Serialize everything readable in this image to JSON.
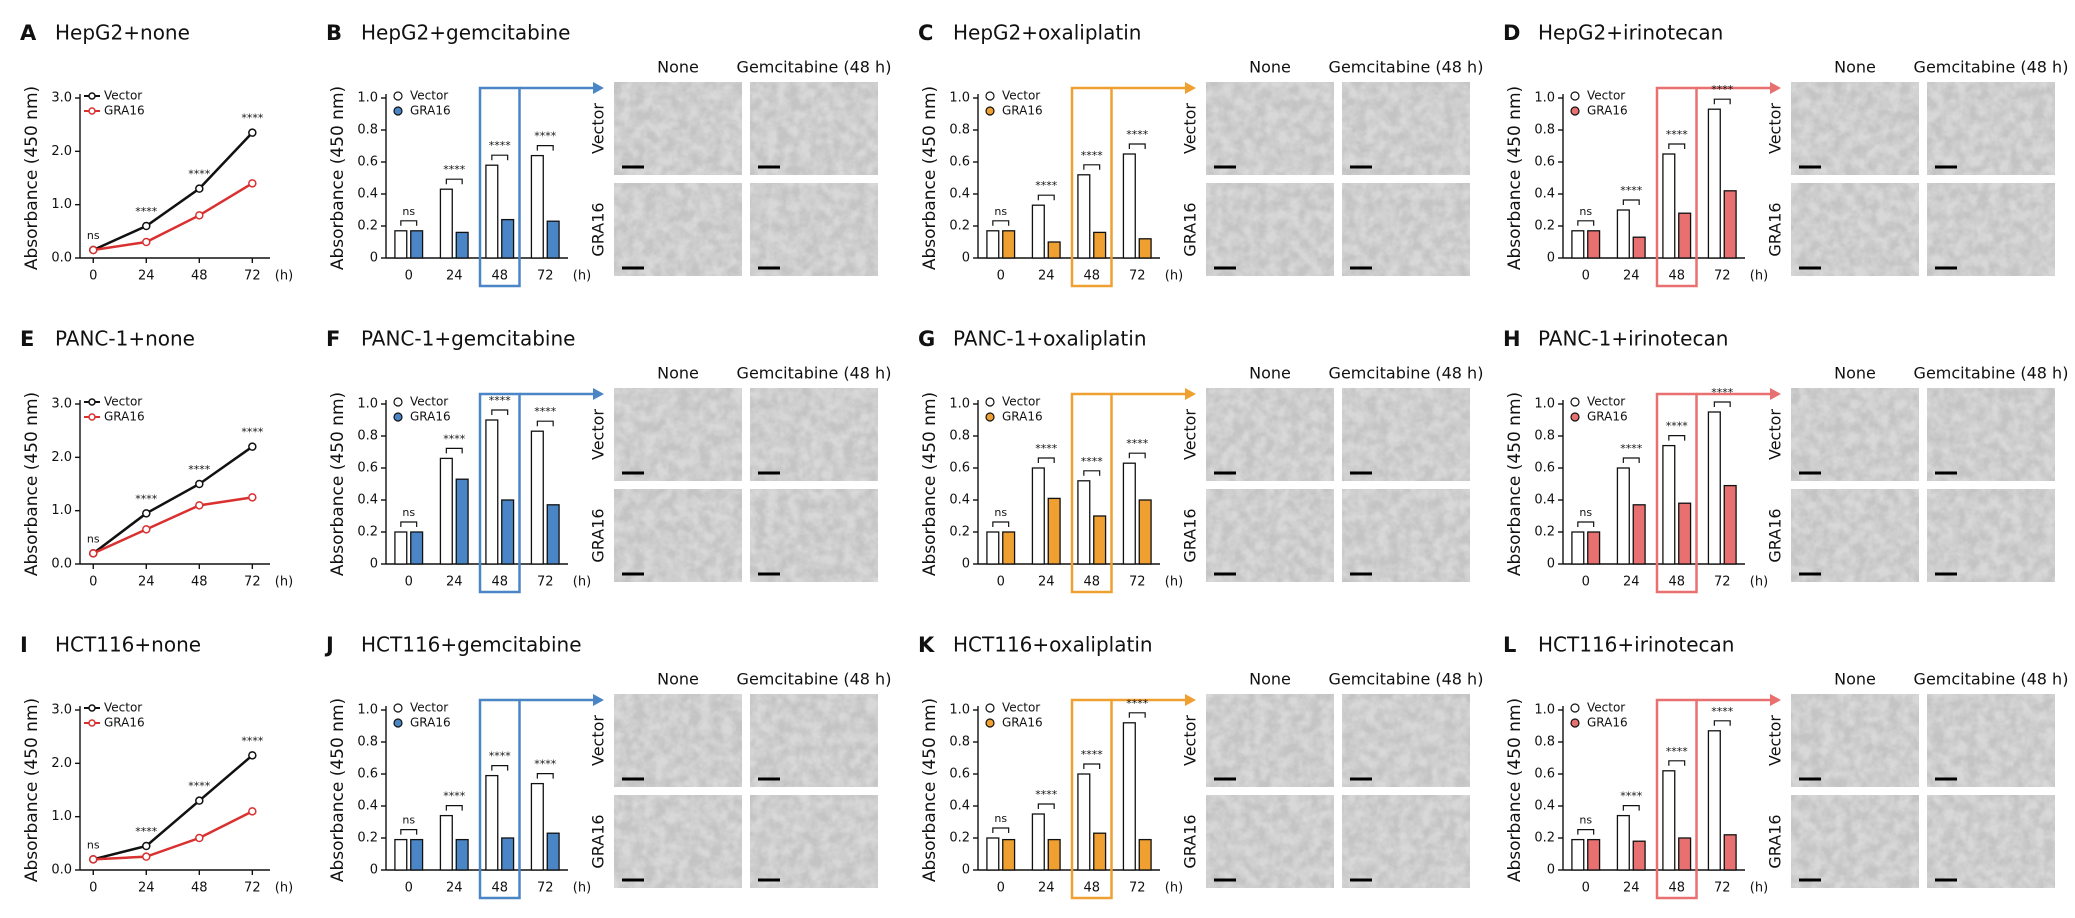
{
  "chart_data": [
    {
      "type": "line",
      "panel": "A",
      "title": "HepG2+none",
      "y_label": "Absorbance (450 nm)",
      "x_unit": "(h)",
      "x": [
        0,
        24,
        48,
        72
      ],
      "xlim": [
        -6,
        80
      ],
      "xticks": [
        0,
        24,
        48,
        72
      ],
      "ylim": [
        0,
        3
      ],
      "yticks": [
        {
          "value": 0,
          "label": "0.0"
        },
        {
          "value": 1,
          "label": "1.0"
        },
        {
          "value": 2,
          "label": "2.0"
        },
        {
          "value": 3,
          "label": "3.0"
        }
      ],
      "series": [
        {
          "name": "Vector",
          "color": "#111111",
          "values": [
            0.15,
            0.6,
            1.3,
            2.35
          ]
        },
        {
          "name": "GRA16",
          "color": "#d93030",
          "values": [
            0.15,
            0.3,
            0.8,
            1.4
          ]
        }
      ],
      "annotations": [
        "ns",
        "****",
        "****",
        "****"
      ]
    },
    {
      "type": "bar",
      "panel": "B",
      "title": "HepG2+gemcitabine",
      "y_label": "Absorbance (450 nm)",
      "x_unit": "(h)",
      "categories": [
        "0",
        "24",
        "48",
        "72"
      ],
      "highlight_category": "48",
      "ylim": [
        0,
        1
      ],
      "yticks": [
        0,
        0.2,
        0.4,
        0.6,
        0.8,
        {
          "value": 1,
          "label": "1.0"
        }
      ],
      "series": [
        {
          "name": "Vector",
          "color": "#ffffff",
          "values": [
            0.17,
            0.43,
            0.58,
            0.64
          ]
        },
        {
          "name": "GRA16",
          "color": "#4a86c5",
          "values": [
            0.17,
            0.16,
            0.24,
            0.23
          ]
        }
      ],
      "annotations": [
        "ns",
        "****",
        "****",
        "****"
      ],
      "image_columns": [
        "None",
        "Gemcitabine (48 h)"
      ],
      "image_rows": [
        "Vector",
        "GRA16"
      ]
    },
    {
      "type": "bar",
      "panel": "C",
      "title": "HepG2+oxaliplatin",
      "y_label": "Absorbance (450 nm)",
      "x_unit": "(h)",
      "categories": [
        "0",
        "24",
        "48",
        "72"
      ],
      "highlight_category": "48",
      "ylim": [
        0,
        1
      ],
      "yticks": [
        0,
        0.2,
        0.4,
        0.6,
        0.8,
        {
          "value": 1,
          "label": "1.0"
        }
      ],
      "series": [
        {
          "name": "Vector",
          "color": "#ffffff",
          "values": [
            0.17,
            0.33,
            0.52,
            0.65
          ]
        },
        {
          "name": "GRA16",
          "color": "#f0a030",
          "values": [
            0.17,
            0.1,
            0.16,
            0.12
          ]
        }
      ],
      "annotations": [
        "ns",
        "****",
        "****",
        "****"
      ],
      "image_columns": [
        "None",
        "Gemcitabine (48 h)"
      ],
      "image_rows": [
        "Vector",
        "GRA16"
      ]
    },
    {
      "type": "bar",
      "panel": "D",
      "title": "HepG2+irinotecan",
      "y_label": "Absorbance (450 nm)",
      "x_unit": "(h)",
      "categories": [
        "0",
        "24",
        "48",
        "72"
      ],
      "highlight_category": "48",
      "ylim": [
        0,
        1
      ],
      "yticks": [
        0,
        0.2,
        0.4,
        0.6,
        0.8,
        {
          "value": 1,
          "label": "1.0"
        }
      ],
      "series": [
        {
          "name": "Vector",
          "color": "#ffffff",
          "values": [
            0.17,
            0.3,
            0.65,
            0.93
          ]
        },
        {
          "name": "GRA16",
          "color": "#e87070",
          "values": [
            0.17,
            0.13,
            0.28,
            0.42
          ]
        }
      ],
      "annotations": [
        "ns",
        "****",
        "****",
        "****"
      ],
      "image_columns": [
        "None",
        "Gemcitabine (48 h)"
      ],
      "image_rows": [
        "Vector",
        "GRA16"
      ]
    },
    {
      "type": "line",
      "panel": "E",
      "title": "PANC-1+none",
      "y_label": "Absorbance (450 nm)",
      "x_unit": "(h)",
      "x": [
        0,
        24,
        48,
        72
      ],
      "xlim": [
        -6,
        80
      ],
      "xticks": [
        0,
        24,
        48,
        72
      ],
      "ylim": [
        0,
        3
      ],
      "yticks": [
        {
          "value": 0,
          "label": "0.0"
        },
        {
          "value": 1,
          "label": "1.0"
        },
        {
          "value": 2,
          "label": "2.0"
        },
        {
          "value": 3,
          "label": "3.0"
        }
      ],
      "series": [
        {
          "name": "Vector",
          "color": "#111111",
          "values": [
            0.2,
            0.95,
            1.5,
            2.2
          ]
        },
        {
          "name": "GRA16",
          "color": "#d93030",
          "values": [
            0.2,
            0.65,
            1.1,
            1.25
          ]
        }
      ],
      "annotations": [
        "ns",
        "****",
        "****",
        "****"
      ]
    },
    {
      "type": "bar",
      "panel": "F",
      "title": "PANC-1+gemcitabine",
      "y_label": "Absorbance (450 nm)",
      "x_unit": "(h)",
      "categories": [
        "0",
        "24",
        "48",
        "72"
      ],
      "highlight_category": "48",
      "ylim": [
        0,
        1
      ],
      "yticks": [
        0,
        0.2,
        0.4,
        0.6,
        0.8,
        {
          "value": 1,
          "label": "1.0"
        }
      ],
      "series": [
        {
          "name": "Vector",
          "color": "#ffffff",
          "values": [
            0.2,
            0.66,
            0.9,
            0.83
          ]
        },
        {
          "name": "GRA16",
          "color": "#4a86c5",
          "values": [
            0.2,
            0.53,
            0.4,
            0.37
          ]
        }
      ],
      "annotations": [
        "ns",
        "****",
        "****",
        "****"
      ],
      "image_columns": [
        "None",
        "Gemcitabine (48 h)"
      ],
      "image_rows": [
        "Vector",
        "GRA16"
      ]
    },
    {
      "type": "bar",
      "panel": "G",
      "title": "PANC-1+oxaliplatin",
      "y_label": "Absorbance (450 nm)",
      "x_unit": "(h)",
      "categories": [
        "0",
        "24",
        "48",
        "72"
      ],
      "highlight_category": "48",
      "ylim": [
        0,
        1
      ],
      "yticks": [
        0,
        0.2,
        0.4,
        0.6,
        0.8,
        {
          "value": 1,
          "label": "1.0"
        }
      ],
      "series": [
        {
          "name": "Vector",
          "color": "#ffffff",
          "values": [
            0.2,
            0.6,
            0.52,
            0.63
          ]
        },
        {
          "name": "GRA16",
          "color": "#f0a030",
          "values": [
            0.2,
            0.41,
            0.3,
            0.4
          ]
        }
      ],
      "annotations": [
        "ns",
        "****",
        "****",
        "****"
      ],
      "image_columns": [
        "None",
        "Gemcitabine (48 h)"
      ],
      "image_rows": [
        "Vector",
        "GRA16"
      ]
    },
    {
      "type": "bar",
      "panel": "H",
      "title": "PANC-1+irinotecan",
      "y_label": "Absorbance (450 nm)",
      "x_unit": "(h)",
      "categories": [
        "0",
        "24",
        "48",
        "72"
      ],
      "highlight_category": "48",
      "ylim": [
        0,
        1
      ],
      "yticks": [
        0,
        0.2,
        0.4,
        0.6,
        0.8,
        {
          "value": 1,
          "label": "1.0"
        }
      ],
      "series": [
        {
          "name": "Vector",
          "color": "#ffffff",
          "values": [
            0.2,
            0.6,
            0.74,
            0.95
          ]
        },
        {
          "name": "GRA16",
          "color": "#e87070",
          "values": [
            0.2,
            0.37,
            0.38,
            0.49
          ]
        }
      ],
      "annotations": [
        "ns",
        "****",
        "****",
        "****"
      ],
      "image_columns": [
        "None",
        "Gemcitabine (48 h)"
      ],
      "image_rows": [
        "Vector",
        "GRA16"
      ]
    },
    {
      "type": "line",
      "panel": "I",
      "title": "HCT116+none",
      "y_label": "Absorbance (450 nm)",
      "x_unit": "(h)",
      "x": [
        0,
        24,
        48,
        72
      ],
      "xlim": [
        -6,
        80
      ],
      "xticks": [
        0,
        24,
        48,
        72
      ],
      "ylim": [
        0,
        3
      ],
      "yticks": [
        {
          "value": 0,
          "label": "0.0"
        },
        {
          "value": 1,
          "label": "1.0"
        },
        {
          "value": 2,
          "label": "2.0"
        },
        {
          "value": 3,
          "label": "3.0"
        }
      ],
      "series": [
        {
          "name": "Vector",
          "color": "#111111",
          "values": [
            0.2,
            0.45,
            1.3,
            2.15
          ]
        },
        {
          "name": "GRA16",
          "color": "#d93030",
          "values": [
            0.2,
            0.25,
            0.6,
            1.1
          ]
        }
      ],
      "annotations": [
        "ns",
        "****",
        "****",
        "****"
      ]
    },
    {
      "type": "bar",
      "panel": "J",
      "title": "HCT116+gemcitabine",
      "y_label": "Absorbance (450 nm)",
      "x_unit": "(h)",
      "categories": [
        "0",
        "24",
        "48",
        "72"
      ],
      "highlight_category": "48",
      "ylim": [
        0,
        1
      ],
      "yticks": [
        0,
        0.2,
        0.4,
        0.6,
        0.8,
        {
          "value": 1,
          "label": "1.0"
        }
      ],
      "series": [
        {
          "name": "Vector",
          "color": "#ffffff",
          "values": [
            0.19,
            0.34,
            0.59,
            0.54
          ]
        },
        {
          "name": "GRA16",
          "color": "#4a86c5",
          "values": [
            0.19,
            0.19,
            0.2,
            0.23
          ]
        }
      ],
      "annotations": [
        "ns",
        "****",
        "****",
        "****"
      ],
      "image_columns": [
        "None",
        "Gemcitabine (48 h)"
      ],
      "image_rows": [
        "Vector",
        "GRA16"
      ]
    },
    {
      "type": "bar",
      "panel": "K",
      "title": "HCT116+oxaliplatin",
      "y_label": "Absorbance (450 nm)",
      "x_unit": "(h)",
      "categories": [
        "0",
        "24",
        "48",
        "72"
      ],
      "highlight_category": "48",
      "ylim": [
        0,
        1
      ],
      "yticks": [
        0,
        0.2,
        0.4,
        0.6,
        0.8,
        {
          "value": 1,
          "label": "1.0"
        }
      ],
      "series": [
        {
          "name": "Vector",
          "color": "#ffffff",
          "values": [
            0.2,
            0.35,
            0.6,
            0.92
          ]
        },
        {
          "name": "GRA16",
          "color": "#f0a030",
          "values": [
            0.19,
            0.19,
            0.23,
            0.19
          ]
        }
      ],
      "annotations": [
        "ns",
        "****",
        "****",
        "****"
      ],
      "image_columns": [
        "None",
        "Gemcitabine (48 h)"
      ],
      "image_rows": [
        "Vector",
        "GRA16"
      ]
    },
    {
      "type": "bar",
      "panel": "L",
      "title": "HCT116+irinotecan",
      "y_label": "Absorbance (450 nm)",
      "x_unit": "(h)",
      "categories": [
        "0",
        "24",
        "48",
        "72"
      ],
      "highlight_category": "48",
      "ylim": [
        0,
        1
      ],
      "yticks": [
        0,
        0.2,
        0.4,
        0.6,
        0.8,
        {
          "value": 1,
          "label": "1.0"
        }
      ],
      "series": [
        {
          "name": "Vector",
          "color": "#ffffff",
          "values": [
            0.19,
            0.34,
            0.62,
            0.87
          ]
        },
        {
          "name": "GRA16",
          "color": "#e87070",
          "values": [
            0.19,
            0.18,
            0.2,
            0.22
          ]
        }
      ],
      "annotations": [
        "ns",
        "****",
        "****",
        "****"
      ],
      "image_columns": [
        "None",
        "Gemcitabine (48 h)"
      ],
      "image_rows": [
        "Vector",
        "GRA16"
      ]
    }
  ]
}
